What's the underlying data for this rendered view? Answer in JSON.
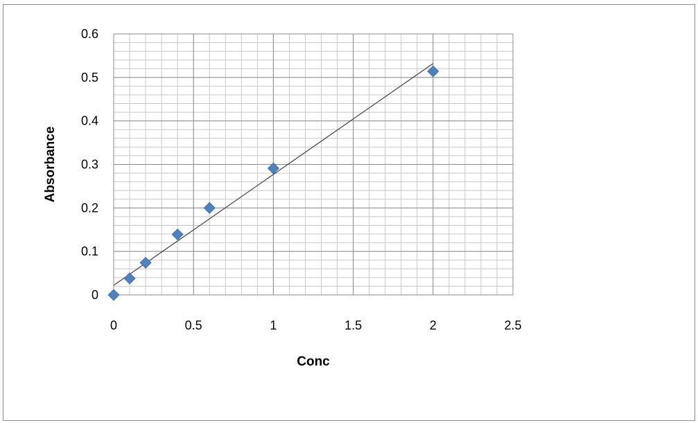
{
  "chart_data": {
    "type": "scatter",
    "title": "",
    "xlabel": "Conc",
    "ylabel": "Absorbance",
    "xlim": [
      0,
      2.5
    ],
    "ylim": [
      0,
      0.6
    ],
    "x_ticks": [
      "0",
      "0.5",
      "1",
      "1.5",
      "2",
      "2.5"
    ],
    "y_ticks": [
      "0",
      "0.1",
      "0.2",
      "0.3",
      "0.4",
      "0.5",
      "0.6"
    ],
    "grid": true,
    "minor_grid": true,
    "legend": "none",
    "marker": "diamond",
    "marker_color": "#4f81bd",
    "series": [
      {
        "x": [
          0,
          0.1,
          0.2,
          0.4,
          0.6,
          1.0,
          2.0
        ],
        "y": [
          0,
          0.038,
          0.074,
          0.139,
          0.2,
          0.291,
          0.514
        ]
      }
    ],
    "trendline": {
      "type": "linear",
      "color": "#404040",
      "x": [
        0,
        2.0
      ],
      "y": [
        0.022,
        0.532
      ]
    }
  }
}
